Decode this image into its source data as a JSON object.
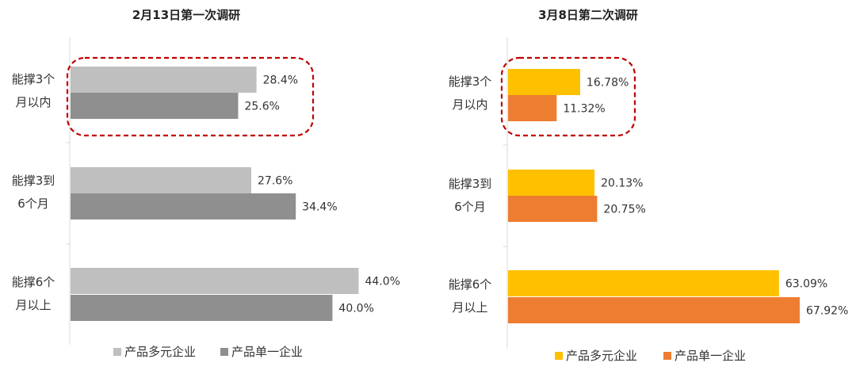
{
  "chart_data": [
    {
      "type": "bar",
      "orientation": "horizontal",
      "title": "2月13日第一次调研",
      "categories": [
        {
          "line1": "能撑3个",
          "line2": "月以内"
        },
        {
          "line1": "能撑3到",
          "line2": "6个月"
        },
        {
          "line1": "能撑6个",
          "line2": "月以上"
        }
      ],
      "series": [
        {
          "name": "产品多元企业",
          "color": "#bfbfbf",
          "values": [
            28.4,
            27.6,
            44.0
          ],
          "labels": [
            "28.4%",
            "27.6%",
            "44.0%"
          ]
        },
        {
          "name": "产品单一企业",
          "color": "#8f8f8f",
          "values": [
            25.6,
            34.4,
            40.0
          ],
          "labels": [
            "25.6%",
            "34.4%",
            "40.0%"
          ]
        }
      ],
      "xlim": [
        0,
        46
      ],
      "grid": false,
      "legend": "bottom",
      "highlight": {
        "category_index": 0,
        "style": "dashed",
        "color": "#c00000"
      }
    },
    {
      "type": "bar",
      "orientation": "horizontal",
      "title": "3月8日第二次调研",
      "categories": [
        {
          "line1": "能撑3个",
          "line2": "月以内"
        },
        {
          "line1": "能撑3到",
          "line2": "6个月"
        },
        {
          "line1": "能撑6个",
          "line2": "月以上"
        }
      ],
      "series": [
        {
          "name": "产品多元企业",
          "color": "#ffc000",
          "values": [
            16.78,
            20.13,
            63.09
          ],
          "labels": [
            "16.78%",
            "20.13%",
            "63.09%"
          ]
        },
        {
          "name": "产品单一企业",
          "color": "#ed7d31",
          "values": [
            11.32,
            20.75,
            67.92
          ],
          "labels": [
            "11.32%",
            "20.75%",
            "67.92%"
          ]
        }
      ],
      "xlim": [
        0,
        70
      ],
      "grid": false,
      "legend": "bottom",
      "highlight": {
        "category_index": 0,
        "style": "dashed",
        "color": "#c00000"
      }
    }
  ]
}
